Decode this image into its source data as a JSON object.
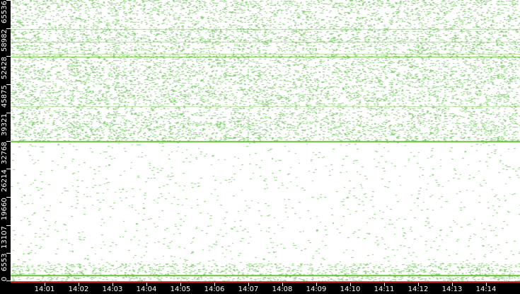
{
  "chart_data": {
    "type": "scatter",
    "title": "",
    "xlabel": "",
    "ylabel": "",
    "x_tick_labels": [
      "14:01",
      "14:02",
      "14:03",
      "14:04",
      "14:05",
      "14:06",
      "14:07",
      "14:08",
      "14:09",
      "14:10",
      "14:11",
      "14:12",
      "14:13",
      "14:14"
    ],
    "x_range": [
      "14:00",
      "14:15"
    ],
    "y_tick_labels": [
      "0",
      "6553",
      "13107",
      "19660",
      "26214",
      "32768",
      "39321",
      "45875",
      "52428",
      "58982",
      "65536"
    ],
    "ylim": [
      0,
      65536
    ],
    "grid": false,
    "point_color": "#8fd07f",
    "line_color": "#6cbf3a",
    "baseline_color": "#e02020",
    "density_bands": [
      {
        "from": 0,
        "to": 4000,
        "density": "high"
      },
      {
        "from": 4000,
        "to": 32768,
        "density": "low"
      },
      {
        "from": 32768,
        "to": 65536,
        "density": "high"
      }
    ],
    "horizontal_lines": [
      1500,
      32768,
      40800,
      52400,
      53000,
      55800,
      58700
    ]
  }
}
